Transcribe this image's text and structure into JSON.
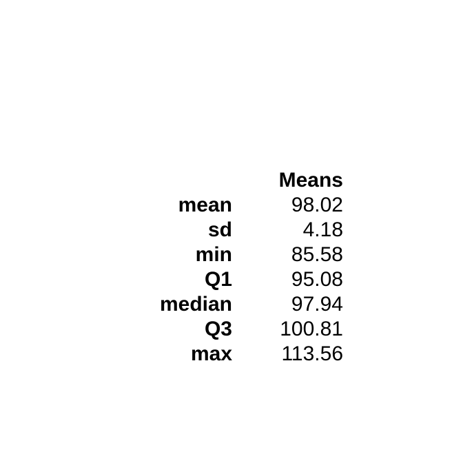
{
  "chart_data": {
    "type": "table",
    "columns": [
      "Means"
    ],
    "rows": [
      {
        "label": "mean",
        "value": "98.02"
      },
      {
        "label": "sd",
        "value": "4.18"
      },
      {
        "label": "min",
        "value": "85.58"
      },
      {
        "label": "Q1",
        "value": "95.08"
      },
      {
        "label": "median",
        "value": "97.94"
      },
      {
        "label": "Q3",
        "value": "100.81"
      },
      {
        "label": "max",
        "value": "113.56"
      }
    ]
  }
}
